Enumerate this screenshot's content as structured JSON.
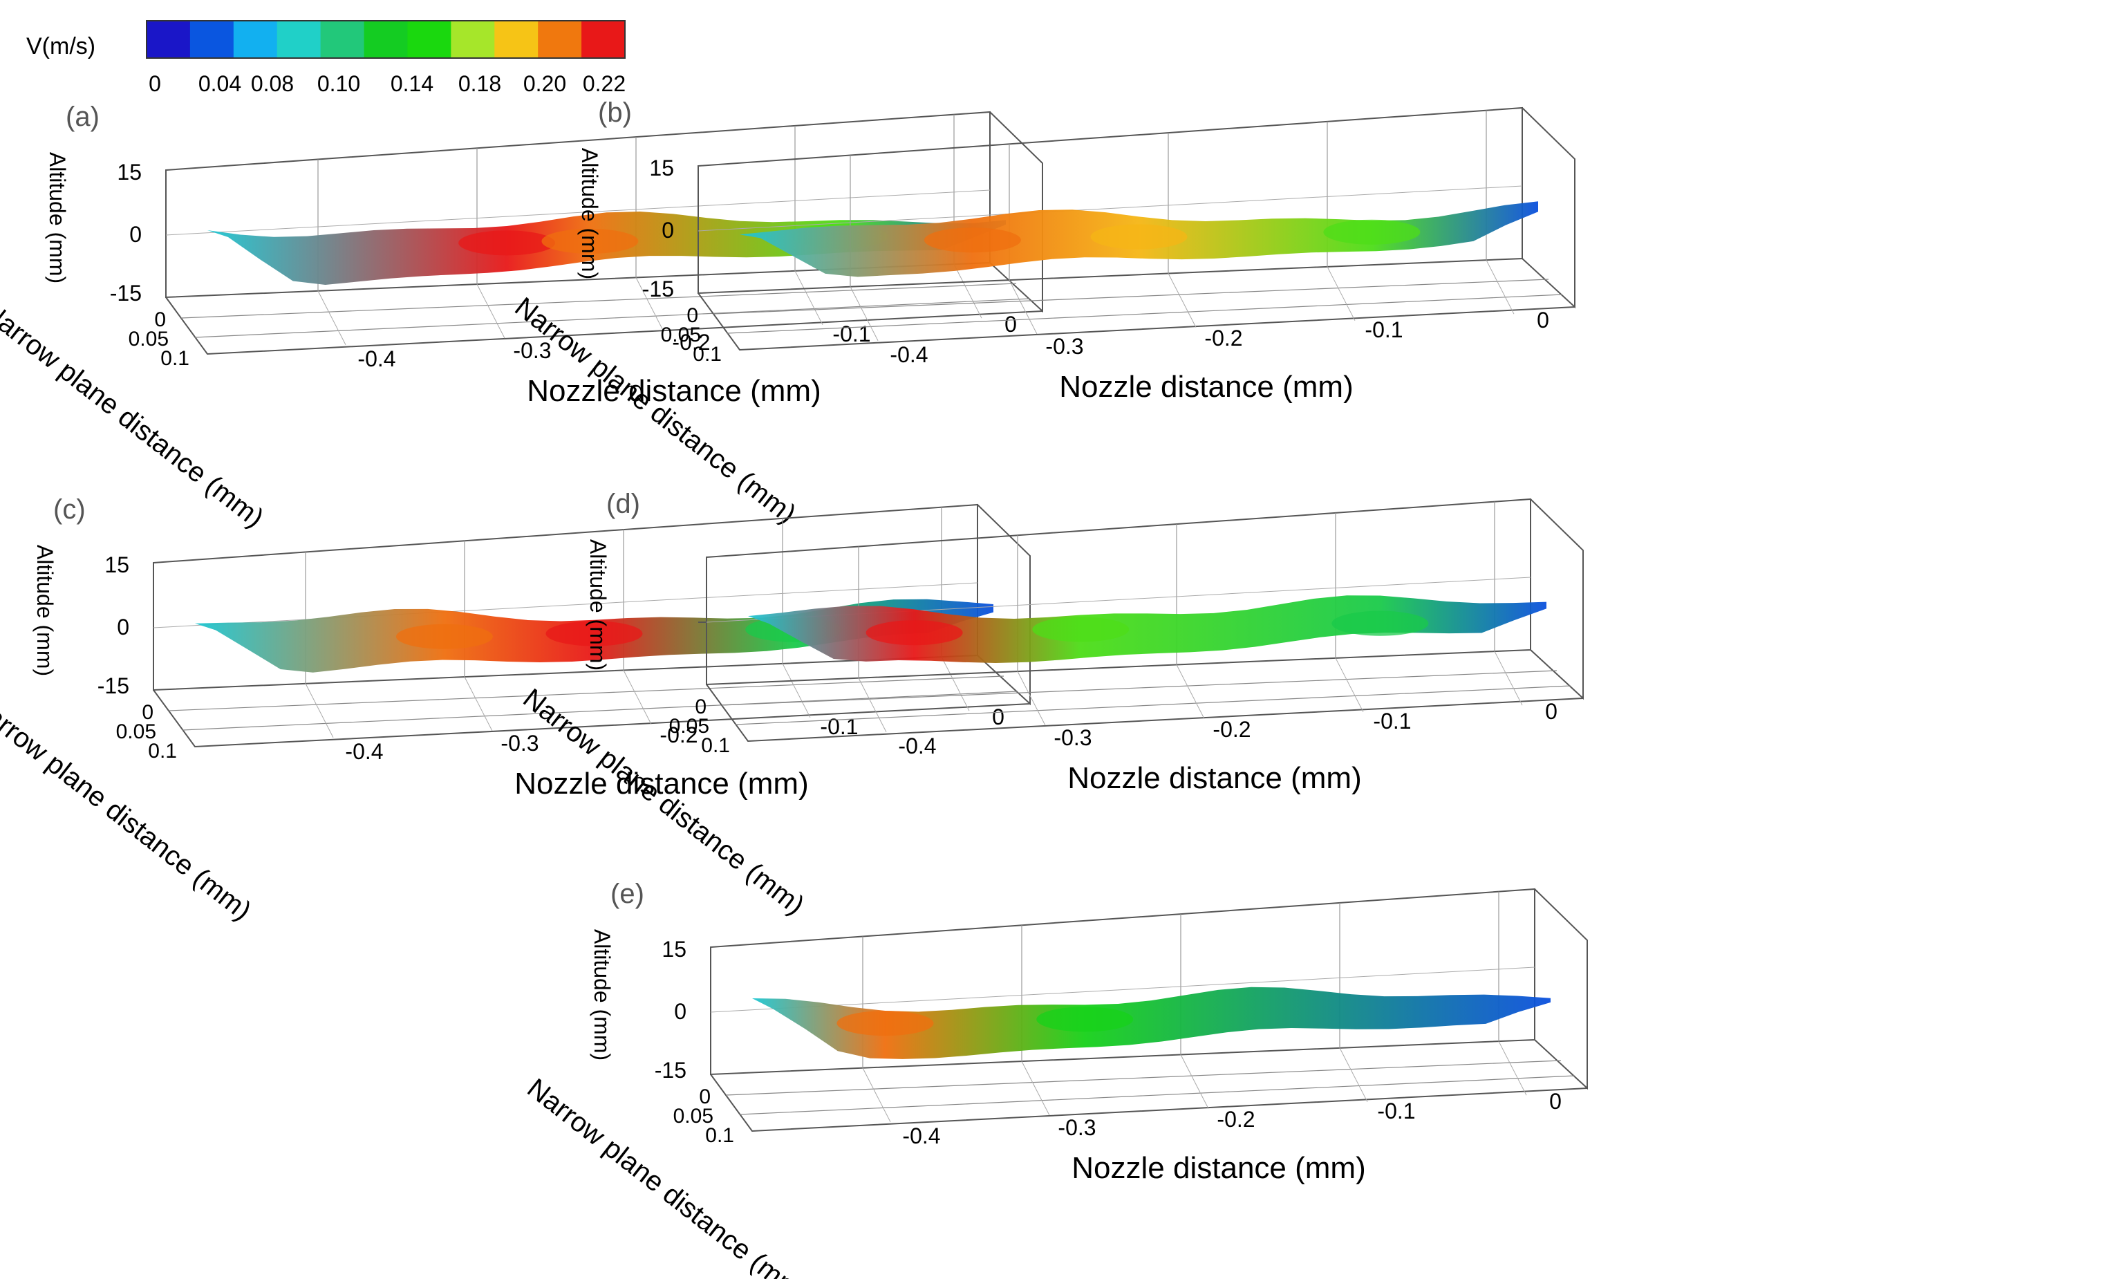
{
  "legend": {
    "title": "V(m/s)",
    "colors": [
      "#1a16c8",
      "#0a56e0",
      "#12b0f0",
      "#20d0c8",
      "#22c87a",
      "#14cc22",
      "#1ad80e",
      "#a6e62a",
      "#f6c416",
      "#f0780e",
      "#e81818"
    ],
    "tick_labels": [
      "0",
      "0.04",
      "0.08",
      "0.10",
      "0.14",
      "0.18",
      "0.20",
      "0.22"
    ],
    "min": 0,
    "max": 0.22,
    "unit": "m/s"
  },
  "chart_data": [
    {
      "type": "3d-surface",
      "panel_label": "(a)",
      "xlabel": "Nozzle distance (mm)",
      "ylabel": "Narrow plane distance (mm)",
      "zlabel": "Altitude (mm)",
      "x_ticks": [
        "-0.4",
        "-0.3",
        "-0.2",
        "-0.1",
        "0"
      ],
      "y_ticks": [
        "0",
        "0.05",
        "0.1"
      ],
      "z_ticks": [
        "15",
        "0",
        "-15"
      ],
      "hotspots": [
        {
          "x": -0.3,
          "v": 0.22
        },
        {
          "x": -0.25,
          "v": 0.2
        },
        {
          "x": -0.1,
          "v": 0.14
        }
      ]
    },
    {
      "type": "3d-surface",
      "panel_label": "(b)",
      "xlabel": "Nozzle distance (mm)",
      "ylabel": "Narrow plane distance (mm)",
      "zlabel": "Altitude (mm)",
      "x_ticks": [
        "-0.4",
        "-0.3",
        "-0.2",
        "-0.1",
        "0"
      ],
      "y_ticks": [
        "0",
        "0.05",
        "0.1"
      ],
      "z_ticks": [
        "15",
        "0",
        "-15"
      ],
      "hotspots": [
        {
          "x": -0.34,
          "v": 0.2
        },
        {
          "x": -0.24,
          "v": 0.18
        },
        {
          "x": -0.1,
          "v": 0.14
        }
      ]
    },
    {
      "type": "3d-surface",
      "panel_label": "(c)",
      "xlabel": "Nozzle distance (mm)",
      "ylabel": "Narrow plane distance (mm)",
      "zlabel": "Altitude (mm)",
      "x_ticks": [
        "-0.4",
        "-0.3",
        "-0.2",
        "-0.1",
        "0"
      ],
      "y_ticks": [
        "0",
        "0.05",
        "0.1"
      ],
      "z_ticks": [
        "15",
        "0",
        "-15"
      ],
      "hotspots": [
        {
          "x": -0.33,
          "v": 0.2
        },
        {
          "x": -0.24,
          "v": 0.22
        },
        {
          "x": -0.12,
          "v": 0.1
        }
      ]
    },
    {
      "type": "3d-surface",
      "panel_label": "(d)",
      "xlabel": "Nozzle distance (mm)",
      "ylabel": "Narrow plane distance (mm)",
      "zlabel": "Altitude (mm)",
      "x_ticks": [
        "-0.4",
        "-0.3",
        "-0.2",
        "-0.1",
        "0"
      ],
      "y_ticks": [
        "0",
        "0.05",
        "0.1"
      ],
      "z_ticks": [],
      "hotspots": [
        {
          "x": -0.38,
          "v": 0.22
        },
        {
          "x": -0.28,
          "v": 0.14
        },
        {
          "x": -0.1,
          "v": 0.1
        }
      ]
    },
    {
      "type": "3d-surface",
      "panel_label": "(e)",
      "xlabel": "Nozzle distance (mm)",
      "ylabel": "Narrow plane distance (mm)",
      "zlabel": "Altitude (mm)",
      "x_ticks": [
        "-0.4",
        "-0.3",
        "-0.2",
        "-0.1",
        "0"
      ],
      "y_ticks": [
        "0",
        "0.05",
        "0.1"
      ],
      "z_ticks": [
        "15",
        "0",
        "-15"
      ],
      "hotspots": [
        {
          "x": -0.4,
          "v": 0.2
        },
        {
          "x": -0.28,
          "v": 0.12
        }
      ]
    }
  ]
}
